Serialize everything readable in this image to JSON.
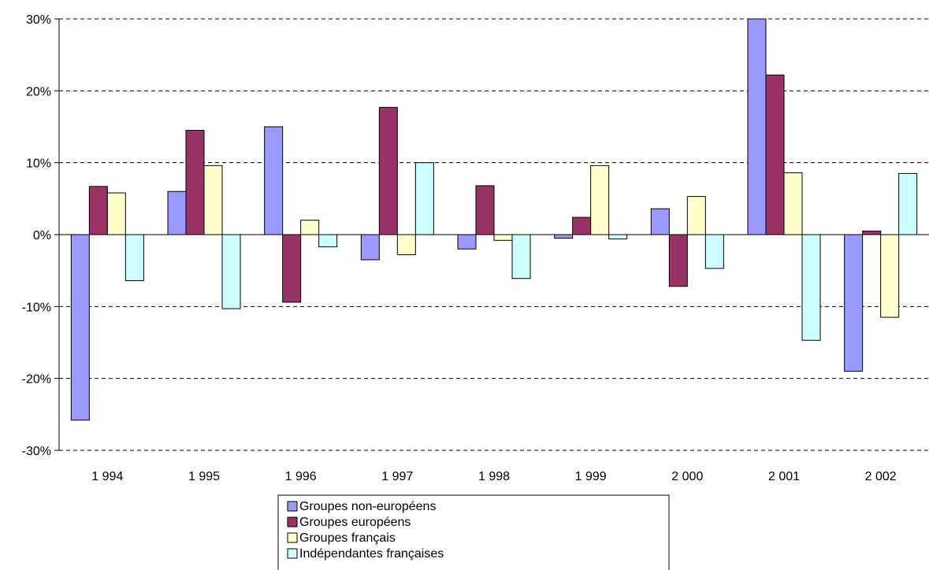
{
  "chart_data": {
    "type": "bar",
    "title": "",
    "xlabel": "",
    "ylabel": "",
    "categories": [
      "1 994",
      "1 995",
      "1 996",
      "1 997",
      "1 998",
      "1 999",
      "2 000",
      "2 001",
      "2 002"
    ],
    "ylim": [
      -0.3,
      0.3
    ],
    "yticks": [
      -0.3,
      -0.2,
      -0.1,
      0.0,
      0.1,
      0.2,
      0.3
    ],
    "ytick_labels": [
      "-30%",
      "-20%",
      "-10%",
      "0%",
      "10%",
      "20%",
      "30%"
    ],
    "grid": "horizontal dashed",
    "legend_position": "bottom",
    "series": [
      {
        "name": "Groupes non-européens",
        "color": "#9999ff",
        "values": [
          -0.258,
          0.06,
          0.15,
          -0.035,
          -0.02,
          -0.005,
          0.036,
          0.3,
          -0.19
        ]
      },
      {
        "name": "Groupes européens",
        "color": "#993366",
        "values": [
          0.067,
          0.145,
          -0.094,
          0.177,
          0.068,
          0.024,
          -0.072,
          0.222,
          0.005
        ]
      },
      {
        "name": "Groupes français",
        "color": "#ffffcc",
        "values": [
          0.058,
          0.096,
          0.02,
          -0.028,
          -0.008,
          0.096,
          0.053,
          0.086,
          -0.115
        ]
      },
      {
        "name": "Indépendantes françaises",
        "color": "#ccffff",
        "values": [
          -0.064,
          -0.103,
          -0.017,
          0.1,
          -0.061,
          -0.006,
          -0.047,
          -0.147,
          0.085
        ]
      }
    ]
  }
}
